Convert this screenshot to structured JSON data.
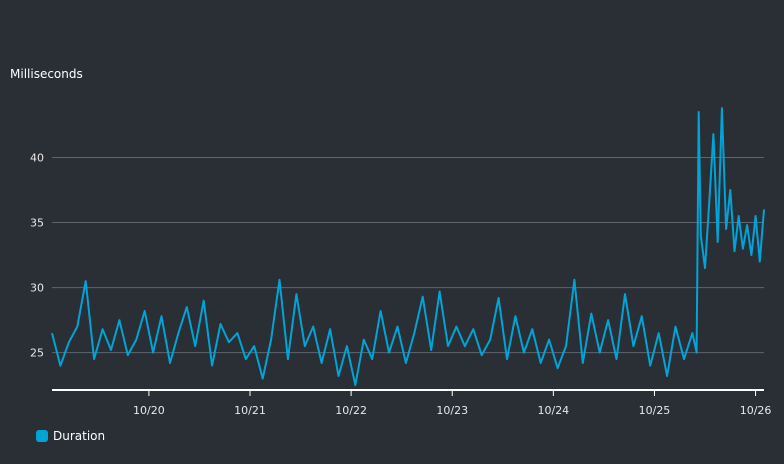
{
  "chart_data": {
    "type": "line",
    "ylabel": "Milliseconds",
    "ylim": [
      22.2,
      44.5
    ],
    "yticks": [
      25,
      30,
      35,
      40
    ],
    "x_range": [
      "2024-10-19T01:00",
      "2024-10-26T02:00"
    ],
    "xticks": [
      {
        "label": "10/20",
        "at": "2024-10-20T00:00"
      },
      {
        "label": "10/21",
        "at": "2024-10-21T00:00"
      },
      {
        "label": "10/22",
        "at": "2024-10-22T00:00"
      },
      {
        "label": "10/23",
        "at": "2024-10-23T00:00"
      },
      {
        "label": "10/24",
        "at": "2024-10-24T00:00"
      },
      {
        "label": "10/25",
        "at": "2024-10-25T00:00"
      },
      {
        "label": "10/26",
        "at": "2024-10-26T00:00"
      }
    ],
    "grid": true,
    "legend_position": "bottom-left",
    "series": [
      {
        "name": "Duration",
        "color": "#00a4d6",
        "points": [
          [
            "2024-10-19T01:00",
            26.5
          ],
          [
            "2024-10-19T03:00",
            24.0
          ],
          [
            "2024-10-19T05:00",
            25.8
          ],
          [
            "2024-10-19T07:00",
            27.0
          ],
          [
            "2024-10-19T09:00",
            30.5
          ],
          [
            "2024-10-19T11:00",
            24.5
          ],
          [
            "2024-10-19T13:00",
            26.8
          ],
          [
            "2024-10-19T15:00",
            25.2
          ],
          [
            "2024-10-19T17:00",
            27.5
          ],
          [
            "2024-10-19T19:00",
            24.8
          ],
          [
            "2024-10-19T21:00",
            26.0
          ],
          [
            "2024-10-19T23:00",
            28.2
          ],
          [
            "2024-10-20T01:00",
            25.0
          ],
          [
            "2024-10-20T03:00",
            27.8
          ],
          [
            "2024-10-20T05:00",
            24.2
          ],
          [
            "2024-10-20T07:00",
            26.5
          ],
          [
            "2024-10-20T09:00",
            28.5
          ],
          [
            "2024-10-20T11:00",
            25.5
          ],
          [
            "2024-10-20T13:00",
            29.0
          ],
          [
            "2024-10-20T15:00",
            24.0
          ],
          [
            "2024-10-20T17:00",
            27.2
          ],
          [
            "2024-10-20T19:00",
            25.8
          ],
          [
            "2024-10-20T21:00",
            26.5
          ],
          [
            "2024-10-20T23:00",
            24.5
          ],
          [
            "2024-10-21T01:00",
            25.5
          ],
          [
            "2024-10-21T03:00",
            23.0
          ],
          [
            "2024-10-21T05:00",
            26.0
          ],
          [
            "2024-10-21T07:00",
            30.6
          ],
          [
            "2024-10-21T09:00",
            24.5
          ],
          [
            "2024-10-21T11:00",
            29.5
          ],
          [
            "2024-10-21T13:00",
            25.5
          ],
          [
            "2024-10-21T15:00",
            27.0
          ],
          [
            "2024-10-21T17:00",
            24.2
          ],
          [
            "2024-10-21T19:00",
            26.8
          ],
          [
            "2024-10-21T21:00",
            23.2
          ],
          [
            "2024-10-21T23:00",
            25.5
          ],
          [
            "2024-10-22T01:00",
            22.5
          ],
          [
            "2024-10-22T03:00",
            26.0
          ],
          [
            "2024-10-22T05:00",
            24.5
          ],
          [
            "2024-10-22T07:00",
            28.2
          ],
          [
            "2024-10-22T09:00",
            25.0
          ],
          [
            "2024-10-22T11:00",
            27.0
          ],
          [
            "2024-10-22T13:00",
            24.2
          ],
          [
            "2024-10-22T15:00",
            26.5
          ],
          [
            "2024-10-22T17:00",
            29.3
          ],
          [
            "2024-10-22T19:00",
            25.2
          ],
          [
            "2024-10-22T21:00",
            29.7
          ],
          [
            "2024-10-22T23:00",
            25.5
          ],
          [
            "2024-10-23T01:00",
            27.0
          ],
          [
            "2024-10-23T03:00",
            25.5
          ],
          [
            "2024-10-23T05:00",
            26.8
          ],
          [
            "2024-10-23T07:00",
            24.8
          ],
          [
            "2024-10-23T09:00",
            26.0
          ],
          [
            "2024-10-23T11:00",
            29.2
          ],
          [
            "2024-10-23T13:00",
            24.5
          ],
          [
            "2024-10-23T15:00",
            27.8
          ],
          [
            "2024-10-23T17:00",
            25.0
          ],
          [
            "2024-10-23T19:00",
            26.8
          ],
          [
            "2024-10-23T21:00",
            24.2
          ],
          [
            "2024-10-23T23:00",
            26.0
          ],
          [
            "2024-10-24T01:00",
            23.8
          ],
          [
            "2024-10-24T03:00",
            25.5
          ],
          [
            "2024-10-24T05:00",
            30.6
          ],
          [
            "2024-10-24T07:00",
            24.2
          ],
          [
            "2024-10-24T09:00",
            28.0
          ],
          [
            "2024-10-24T11:00",
            25.0
          ],
          [
            "2024-10-24T13:00",
            27.5
          ],
          [
            "2024-10-24T15:00",
            24.5
          ],
          [
            "2024-10-24T17:00",
            29.5
          ],
          [
            "2024-10-24T19:00",
            25.5
          ],
          [
            "2024-10-24T21:00",
            27.8
          ],
          [
            "2024-10-24T23:00",
            24.0
          ],
          [
            "2024-10-25T01:00",
            26.5
          ],
          [
            "2024-10-25T03:00",
            23.2
          ],
          [
            "2024-10-25T05:00",
            27.0
          ],
          [
            "2024-10-25T07:00",
            24.5
          ],
          [
            "2024-10-25T09:00",
            26.5
          ],
          [
            "2024-10-25T10:00",
            25.0
          ],
          [
            "2024-10-25T10:30",
            43.5
          ],
          [
            "2024-10-25T11:00",
            34.0
          ],
          [
            "2024-10-25T12:00",
            31.5
          ],
          [
            "2024-10-25T13:00",
            36.5
          ],
          [
            "2024-10-25T14:00",
            41.8
          ],
          [
            "2024-10-25T15:00",
            33.5
          ],
          [
            "2024-10-25T16:00",
            43.8
          ],
          [
            "2024-10-25T17:00",
            34.5
          ],
          [
            "2024-10-25T18:00",
            37.5
          ],
          [
            "2024-10-25T19:00",
            32.8
          ],
          [
            "2024-10-25T20:00",
            35.5
          ],
          [
            "2024-10-25T21:00",
            33.0
          ],
          [
            "2024-10-25T22:00",
            34.8
          ],
          [
            "2024-10-25T23:00",
            32.5
          ],
          [
            "2024-10-26T00:00",
            35.5
          ],
          [
            "2024-10-26T01:00",
            32.0
          ],
          [
            "2024-10-26T02:00",
            36.0
          ]
        ]
      }
    ]
  }
}
